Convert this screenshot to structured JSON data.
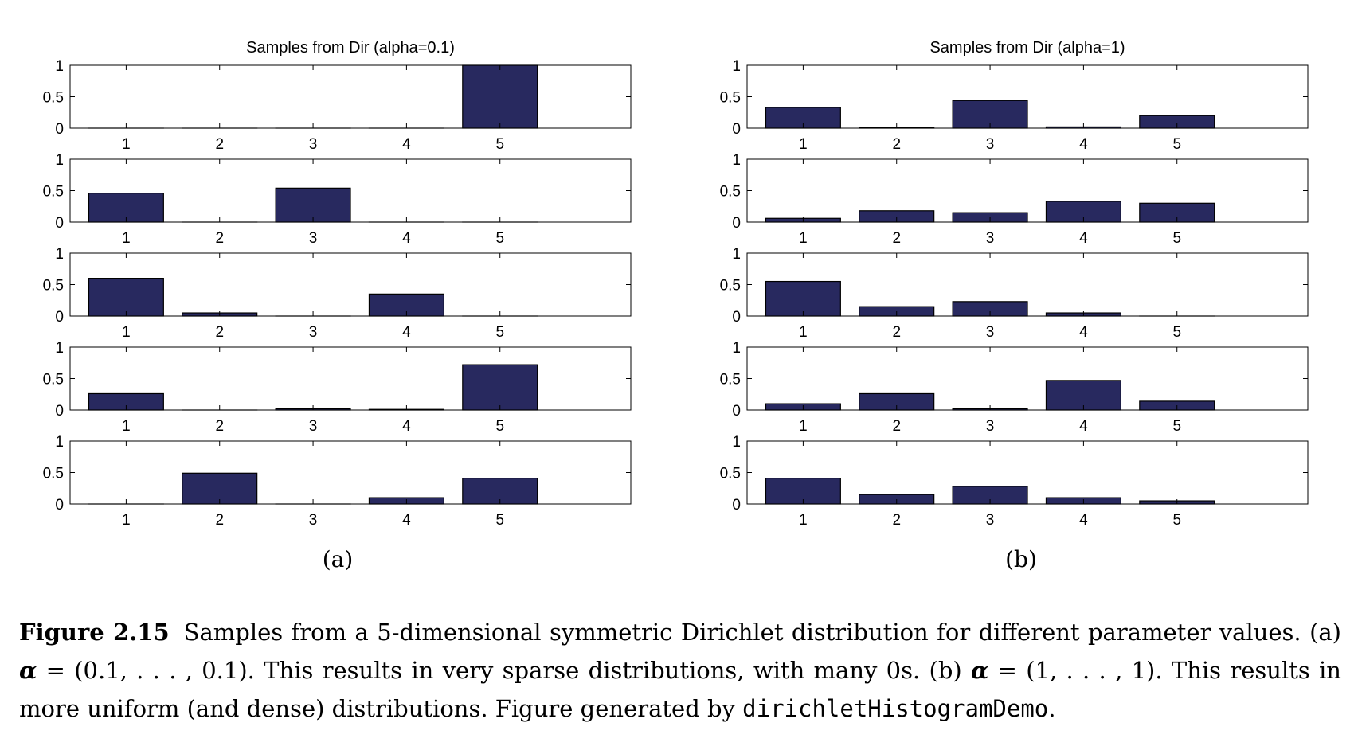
{
  "chart_data": [
    {
      "type": "bar",
      "title": "Samples from Dir (alpha=0.1)",
      "panel_label": "(a)",
      "categories": [
        "1",
        "2",
        "3",
        "4",
        "5"
      ],
      "yticks": [
        "0",
        "0.5",
        "1"
      ],
      "ylim": [
        0,
        1
      ],
      "xlim": [
        0.4,
        6.4
      ],
      "bar_color": "#28295f",
      "samples": [
        {
          "values": [
            0.0,
            0.0,
            0.0,
            0.0,
            1.0
          ]
        },
        {
          "values": [
            0.46,
            0.0,
            0.54,
            0.0,
            0.0
          ]
        },
        {
          "values": [
            0.6,
            0.05,
            0.0,
            0.35,
            0.0
          ]
        },
        {
          "values": [
            0.26,
            0.0,
            0.02,
            0.01,
            0.72
          ]
        },
        {
          "values": [
            0.0,
            0.49,
            0.0,
            0.1,
            0.41
          ]
        }
      ]
    },
    {
      "type": "bar",
      "title": "Samples from Dir (alpha=1)",
      "panel_label": "(b)",
      "categories": [
        "1",
        "2",
        "3",
        "4",
        "5"
      ],
      "yticks": [
        "0",
        "0.5",
        "1"
      ],
      "ylim": [
        0,
        1
      ],
      "xlim": [
        0.4,
        6.4
      ],
      "bar_color": "#28295f",
      "samples": [
        {
          "values": [
            0.33,
            0.01,
            0.44,
            0.02,
            0.2
          ]
        },
        {
          "values": [
            0.06,
            0.18,
            0.15,
            0.33,
            0.3
          ]
        },
        {
          "values": [
            0.55,
            0.15,
            0.23,
            0.05,
            0.0
          ]
        },
        {
          "values": [
            0.1,
            0.26,
            0.02,
            0.47,
            0.14
          ]
        },
        {
          "values": [
            0.41,
            0.15,
            0.28,
            0.1,
            0.05
          ]
        }
      ]
    }
  ],
  "caption": {
    "figure_number": "Figure 2.15",
    "sentence1": "Samples from a 5-dimensional symmetric Dirichlet distribution for different parameter values.",
    "a_marker": "(a)",
    "alpha_symbol": "α",
    "a_value": " = (0.1, . . . , 0.1).",
    "a_text": " This results in very sparse distributions, with many 0s. ",
    "b_marker": "(b)",
    "b_value": " = (1, . . . , 1).",
    "b_text": " This results in more uniform (and dense) distributions. Figure generated by ",
    "code_name": "dirichletHistogramDemo",
    "end": "."
  }
}
